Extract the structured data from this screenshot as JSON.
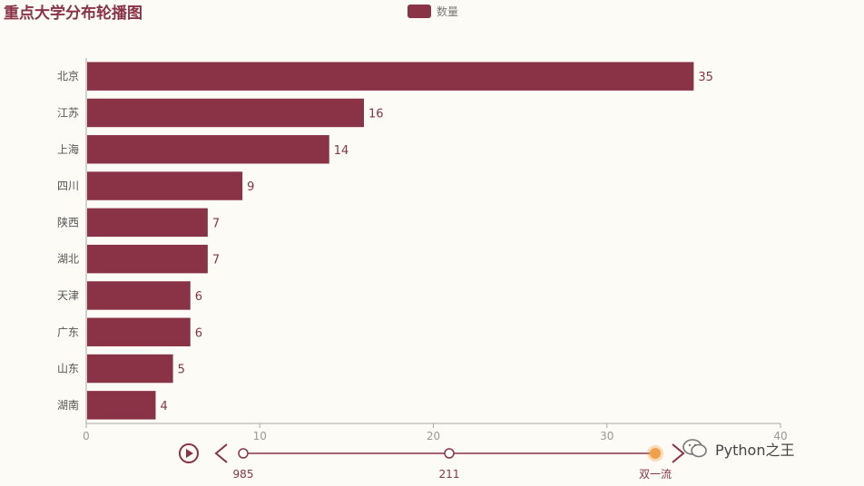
{
  "chart_data": {
    "type": "bar",
    "orientation": "horizontal",
    "title": "重点大学分布轮播图",
    "legend": {
      "entries": [
        "数量"
      ],
      "position": "top-center"
    },
    "categories": [
      "北京",
      "江苏",
      "上海",
      "四川",
      "陕西",
      "湖北",
      "天津",
      "广东",
      "山东",
      "湖南"
    ],
    "series": [
      {
        "name": "数量",
        "values": [
          35,
          16,
          14,
          9,
          7,
          7,
          6,
          6,
          5,
          4
        ]
      }
    ],
    "xlim": [
      0,
      40
    ],
    "xticks": [
      0,
      10,
      20,
      30,
      40
    ],
    "grid": false,
    "color": "#8a3346"
  },
  "timeline": {
    "play_icon": "play-icon",
    "prev_icon": "chevron-left-icon",
    "next_icon": "chevron-right-icon",
    "items": [
      "985",
      "211",
      "双一流"
    ],
    "active_index": 2,
    "accent": "#8a3346",
    "active_color": "#f0a04b"
  },
  "watermark": {
    "text": "Python之王",
    "icon": "wechat-icon"
  }
}
